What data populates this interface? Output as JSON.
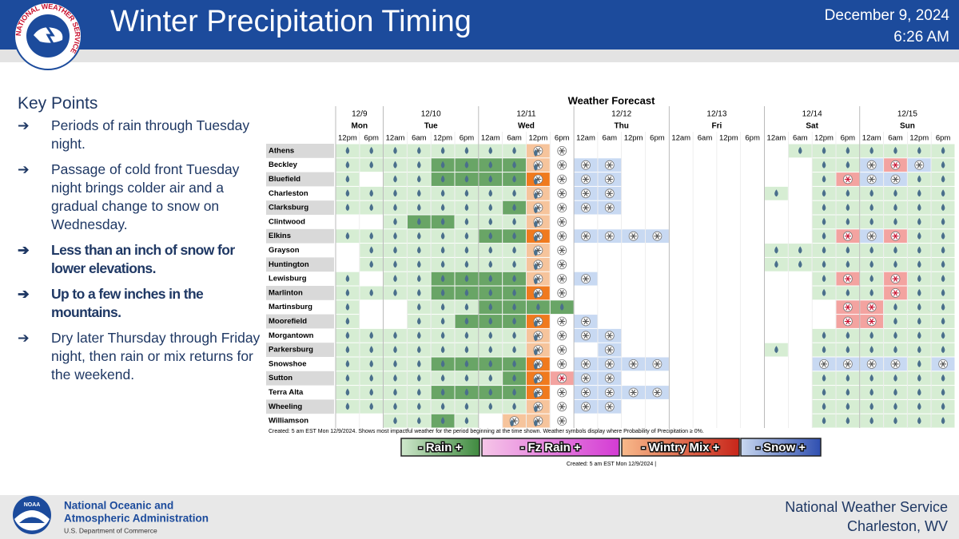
{
  "header": {
    "title": "Winter Precipitation Timing",
    "date": "December 9, 2024",
    "time": "6:26 AM",
    "logo_text": "NATIONAL WEATHER SERVICE"
  },
  "key_points": {
    "heading": "Key Points",
    "items": [
      {
        "text": "Periods of rain through Tuesday night.",
        "bold": false
      },
      {
        "text": "Passage of cold front Tuesday night brings colder air and a gradual change to snow on Wednesday.",
        "bold": false
      },
      {
        "text": "Less than an inch of snow for lower elevations.",
        "bold": true
      },
      {
        "text": "Up to a few inches in the mountains.",
        "bold": true
      },
      {
        "text": "Dry later Thursday through Friday night, then rain or mix returns for the weekend.",
        "bold": false
      }
    ]
  },
  "forecast": {
    "title": "Weather Forecast",
    "days": [
      {
        "date": "12/9",
        "day": "Mon",
        "times": [
          "12pm",
          "6pm"
        ]
      },
      {
        "date": "12/10",
        "day": "Tue",
        "times": [
          "12am",
          "6am",
          "12pm",
          "6pm"
        ]
      },
      {
        "date": "12/11",
        "day": "Wed",
        "times": [
          "12am",
          "6am",
          "12pm",
          "6pm"
        ]
      },
      {
        "date": "12/12",
        "day": "Thu",
        "times": [
          "12am",
          "6am",
          "12pm",
          "6pm"
        ]
      },
      {
        "date": "12/13",
        "day": "Fri",
        "times": [
          "12am",
          "6am",
          "12pm",
          "6pm"
        ]
      },
      {
        "date": "12/14",
        "day": "Sat",
        "times": [
          "12am",
          "6am",
          "12pm",
          "6pm"
        ]
      },
      {
        "date": "12/15",
        "day": "Sun",
        "times": [
          "12am",
          "6am",
          "12pm",
          "6pm"
        ]
      }
    ],
    "rows": [
      {
        "name": "Athens",
        "cells": [
          "gg",
          "gggg",
          "ggow",
          "....",
          "....",
          ".ggg",
          "gggg"
        ]
      },
      {
        "name": "Beckley",
        "cells": [
          "gg",
          "ggGG",
          "GGow",
          "bb..",
          "....",
          "..gg",
          "bpbg"
        ]
      },
      {
        "name": "Bluefield",
        "cells": [
          "g.",
          "ggGG",
          "GGOw",
          "bb..",
          "....",
          "..gp",
          "bbgg"
        ]
      },
      {
        "name": "Charleston",
        "cells": [
          "gg",
          "gggg",
          "ggow",
          "bb..",
          "....",
          "g.gg",
          "gggg"
        ]
      },
      {
        "name": "Clarksburg",
        "cells": [
          "gg",
          "gggg",
          "gGow",
          "bb..",
          "....",
          "..gg",
          "gggg"
        ]
      },
      {
        "name": "Clintwood",
        "cells": [
          "..",
          "gGGg",
          "ggow",
          "....",
          "....",
          "..gg",
          "gggg"
        ]
      },
      {
        "name": "Elkins",
        "cells": [
          "gg",
          "gggg",
          "GGOw",
          "bbbb",
          "....",
          "..gp",
          "bpgg"
        ]
      },
      {
        "name": "Grayson",
        "cells": [
          ".g",
          "gggg",
          "ggow",
          "....",
          "....",
          "gggg",
          "gggg"
        ]
      },
      {
        "name": "Huntington",
        "cells": [
          ".g",
          "gggg",
          "ggow",
          "....",
          "....",
          "gggg",
          "gggg"
        ]
      },
      {
        "name": "Lewisburg",
        "cells": [
          "g.",
          "ggGG",
          "GGow",
          "b...",
          "....",
          "..gp",
          "gpgg"
        ]
      },
      {
        "name": "Marlinton",
        "cells": [
          "gg",
          "ggGG",
          "GGOw",
          "....",
          "....",
          "..gg",
          "gpgg"
        ]
      },
      {
        "name": "Martinsburg",
        "cells": [
          "g.",
          ".ggg",
          "GGGG",
          "....",
          "....",
          "...p",
          "pggg"
        ]
      },
      {
        "name": "Moorefield",
        "cells": [
          "g.",
          ".ggG",
          "GGOw",
          "b...",
          "....",
          "...p",
          "pggg"
        ]
      },
      {
        "name": "Morgantown",
        "cells": [
          "gg",
          "gggg",
          "ggow",
          "bb..",
          "....",
          "..gg",
          "gggg"
        ]
      },
      {
        "name": "Parkersburg",
        "cells": [
          "gg",
          "gggg",
          "ggow",
          ".b..",
          "....",
          "g.gg",
          "gggg"
        ]
      },
      {
        "name": "Snowshoe",
        "cells": [
          "gg",
          "ggGG",
          "GGOw",
          "bbbb",
          "....",
          "..bb",
          "bbgb"
        ]
      },
      {
        "name": "Sutton",
        "cells": [
          "gg",
          "gggg",
          "gGOp",
          "bb..",
          "....",
          "..gg",
          "gggg"
        ]
      },
      {
        "name": "Terra Alta",
        "cells": [
          "gg",
          "ggGG",
          "GGOw",
          "bbbb",
          "....",
          "..gg",
          "gggg"
        ]
      },
      {
        "name": "Wheeling",
        "cells": [
          "gg",
          "gggg",
          "ggow",
          "bb..",
          "....",
          "..gg",
          "gggg"
        ]
      },
      {
        "name": "Williamson",
        "cells": [
          "..",
          "ggGg",
          ".oow",
          "....",
          "....",
          "..gg",
          "gggg"
        ]
      }
    ],
    "note": "Created: 5 am EST Mon 12/9/2024. Shows most impactful weather for the period beginning at the time shown. Weather symbols display where Probability of Precipitation ≥ 0%.",
    "legend": [
      "- Rain +",
      "-    Fz Rain    +",
      "- Wintry Mix +",
      "- Snow +"
    ],
    "created": "Created: 5 am EST Mon 12/9/2024  |"
  },
  "footer": {
    "noaa_logo": "NOAA",
    "org": [
      "National Oceanic and",
      "Atmospheric Administration"
    ],
    "dept": "U.S. Department of Commerce",
    "office": [
      "National Weather Service",
      "Charleston, WV"
    ]
  }
}
